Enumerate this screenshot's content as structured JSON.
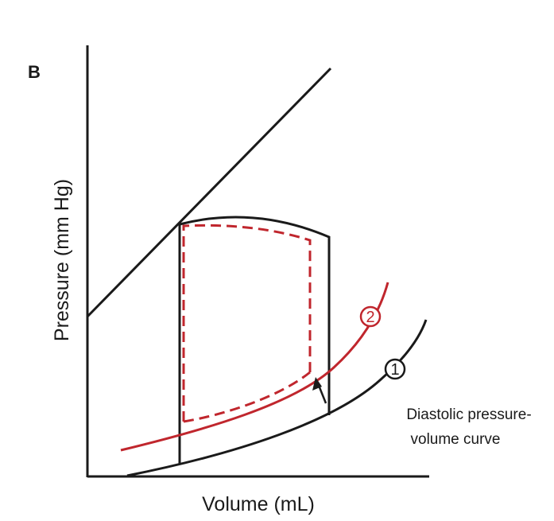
{
  "figure": {
    "panel_letter": "B",
    "xlabel": "Volume (mL)",
    "ylabel": "Pressure (mm Hg)",
    "curve_1_number": "1",
    "curve_2_number": "2",
    "annotation_line1": "Diastolic pressure-",
    "annotation_line2": "volume curve"
  },
  "colors": {
    "black": "#1a1a1a",
    "red": "#c0262d"
  }
}
